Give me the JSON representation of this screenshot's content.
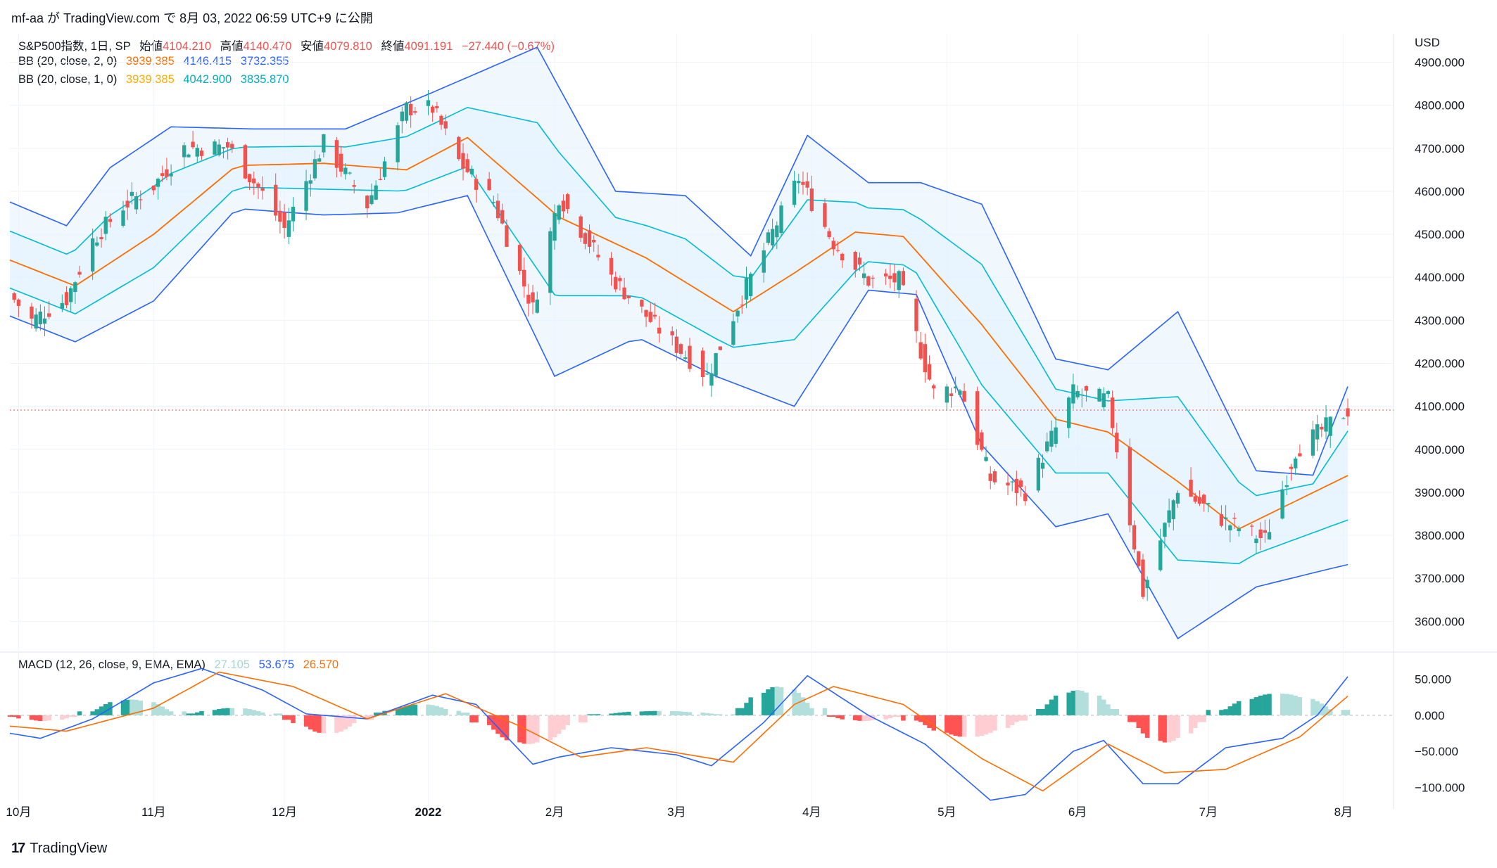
{
  "header": {
    "text": "mf-aa が TradingView.com で 8月 03, 2022 06:59 UTC+9 に公開"
  },
  "footer": {
    "logo_icon": "tradingview-logo-icon",
    "brand": "TradingView"
  },
  "colors": {
    "up": "#26a69a",
    "down": "#ef5350",
    "bb_outer": "#2962ff",
    "bb_inner": "#00bcd4",
    "basis": "#ff6d00",
    "macd_line": "#2962ff",
    "signal_line": "#ff6d00",
    "hist_up_strong": "#26a69a",
    "hist_up_weak": "#b2dfdb",
    "hist_down_strong": "#ff5252",
    "hist_down_weak": "#ffcdd2",
    "fill": "#e3f2fd",
    "text_dim": "#131722"
  },
  "legend": {
    "main": {
      "prefix": "S&P500指数, 1日, SP",
      "open_label": "始値",
      "open": "4104.210",
      "high_label": "高値",
      "high": "4140.470",
      "low_label": "安値",
      "low": "4079.810",
      "close_label": "終値",
      "close": "4091.191",
      "change": "−27.440 (−0.67%)"
    },
    "bb2": {
      "label": "BB (20, close, 2, 0)",
      "basis": "3939.385",
      "upper": "4146.415",
      "lower": "3732.355"
    },
    "bb1": {
      "label": "BB (20, close, 1, 0)",
      "basis": "3939.385",
      "upper": "4042.900",
      "lower": "3835.870"
    },
    "macd": {
      "label": "MACD (12, 26, close, 9, EMA, EMA)",
      "hist": "27.105",
      "macd": "53.675",
      "signal": "26.570"
    }
  },
  "chart_data": [
    {
      "type": "candlestick",
      "title": "S&P500指数, 1日, SP",
      "currency": "USD",
      "x_range": [
        "2021-09-29",
        "2022-08-02"
      ],
      "ylim": [
        3540,
        4950
      ],
      "yticks": [
        "4900.000",
        "4800.000",
        "4700.000",
        "4600.000",
        "4500.000",
        "4400.000",
        "4300.000",
        "4200.000",
        "4100.000",
        "4000.000",
        "3900.000",
        "3800.000",
        "3700.000",
        "3600.000"
      ],
      "xticks": [
        {
          "date": "2021-10-01",
          "label": "10月"
        },
        {
          "date": "2021-11-01",
          "label": "11月"
        },
        {
          "date": "2021-12-01",
          "label": "12月"
        },
        {
          "date": "2022-01-03",
          "label": "2022"
        },
        {
          "date": "2022-02-01",
          "label": "2月"
        },
        {
          "date": "2022-03-01",
          "label": "3月"
        },
        {
          "date": "2022-04-01",
          "label": "4月"
        },
        {
          "date": "2022-05-02",
          "label": "5月"
        },
        {
          "date": "2022-06-01",
          "label": "6月"
        },
        {
          "date": "2022-07-01",
          "label": "7月"
        },
        {
          "date": "2022-08-01",
          "label": "8月"
        }
      ],
      "last_close": 4091.191,
      "close_path": [
        [
          "2021-09-29",
          4360
        ],
        [
          "2021-10-04",
          4300
        ],
        [
          "2021-10-12",
          4350
        ],
        [
          "2021-10-18",
          4486
        ],
        [
          "2021-10-25",
          4566
        ],
        [
          "2021-11-01",
          4613
        ],
        [
          "2021-11-08",
          4700
        ],
        [
          "2021-11-18",
          4704
        ],
        [
          "2021-11-26",
          4594
        ],
        [
          "2021-12-01",
          4513
        ],
        [
          "2021-12-10",
          4712
        ],
        [
          "2021-12-20",
          4568
        ],
        [
          "2021-12-29",
          4793
        ],
        [
          "2022-01-04",
          4793
        ],
        [
          "2022-01-10",
          4670
        ],
        [
          "2022-01-18",
          4577
        ],
        [
          "2022-01-27",
          4326
        ],
        [
          "2022-02-02",
          4589
        ],
        [
          "2022-02-14",
          4401
        ],
        [
          "2022-02-24",
          4288
        ],
        [
          "2022-03-08",
          4170
        ],
        [
          "2022-03-16",
          4357
        ],
        [
          "2022-03-29",
          4631
        ],
        [
          "2022-04-06",
          4481
        ],
        [
          "2022-04-14",
          4392
        ],
        [
          "2022-04-21",
          4393
        ],
        [
          "2022-04-29",
          4131
        ],
        [
          "2022-05-05",
          4146
        ],
        [
          "2022-05-12",
          3930
        ],
        [
          "2022-05-20",
          3901
        ],
        [
          "2022-05-31",
          4132
        ],
        [
          "2022-06-08",
          4115
        ],
        [
          "2022-06-16",
          3667
        ],
        [
          "2022-06-24",
          3911
        ],
        [
          "2022-07-05",
          3831
        ],
        [
          "2022-07-14",
          3790
        ],
        [
          "2022-07-21",
          3998
        ],
        [
          "2022-08-02",
          4091
        ]
      ],
      "bb_basis_path": [
        [
          "2021-09-29",
          4440
        ],
        [
          "2021-10-14",
          4380
        ],
        [
          "2021-11-01",
          4500
        ],
        [
          "2021-11-20",
          4660
        ],
        [
          "2021-12-10",
          4665
        ],
        [
          "2021-12-29",
          4650
        ],
        [
          "2022-01-12",
          4725
        ],
        [
          "2022-02-02",
          4540
        ],
        [
          "2022-02-22",
          4445
        ],
        [
          "2022-03-14",
          4320
        ],
        [
          "2022-03-28",
          4410
        ],
        [
          "2022-04-11",
          4505
        ],
        [
          "2022-04-22",
          4495
        ],
        [
          "2022-05-10",
          4290
        ],
        [
          "2022-05-27",
          4070
        ],
        [
          "2022-06-08",
          4040
        ],
        [
          "2022-06-24",
          3925
        ],
        [
          "2022-07-08",
          3815
        ],
        [
          "2022-08-02",
          3939
        ]
      ],
      "bb_upper_path": [
        [
          "2021-09-29",
          4575
        ],
        [
          "2021-10-12",
          4520
        ],
        [
          "2021-10-22",
          4655
        ],
        [
          "2021-11-05",
          4750
        ],
        [
          "2021-11-24",
          4745
        ],
        [
          "2021-12-15",
          4745
        ],
        [
          "2022-01-04",
          4830
        ],
        [
          "2022-01-20",
          4900
        ],
        [
          "2022-01-28",
          4935
        ],
        [
          "2022-02-15",
          4600
        ],
        [
          "2022-03-03",
          4590
        ],
        [
          "2022-03-18",
          4450
        ],
        [
          "2022-03-31",
          4730
        ],
        [
          "2022-04-14",
          4620
        ],
        [
          "2022-04-26",
          4620
        ],
        [
          "2022-05-10",
          4570
        ],
        [
          "2022-05-27",
          4210
        ],
        [
          "2022-06-08",
          4185
        ],
        [
          "2022-06-24",
          4320
        ],
        [
          "2022-07-12",
          3950
        ],
        [
          "2022-07-25",
          3940
        ],
        [
          "2022-08-02",
          4146
        ]
      ],
      "bb_lower_path": [
        [
          "2021-09-29",
          4310
        ],
        [
          "2021-10-14",
          4250
        ],
        [
          "2021-11-01",
          4345
        ],
        [
          "2021-11-20",
          4560
        ],
        [
          "2021-12-10",
          4545
        ],
        [
          "2021-12-27",
          4550
        ],
        [
          "2022-01-12",
          4590
        ],
        [
          "2022-02-01",
          4170
        ],
        [
          "2022-02-20",
          4260
        ],
        [
          "2022-03-10",
          4170
        ],
        [
          "2022-03-28",
          4100
        ],
        [
          "2022-04-14",
          4370
        ],
        [
          "2022-04-25",
          4360
        ],
        [
          "2022-05-10",
          4010
        ],
        [
          "2022-05-27",
          3820
        ],
        [
          "2022-06-08",
          3850
        ],
        [
          "2022-06-24",
          3560
        ],
        [
          "2022-07-12",
          3680
        ],
        [
          "2022-07-28",
          3720
        ],
        [
          "2022-08-02",
          3732
        ]
      ]
    },
    {
      "type": "bar+line",
      "title": "MACD (12, 26, close, 9, EMA, EMA)",
      "ylim": [
        -130,
        80
      ],
      "yticks": [
        "50.000",
        "0.000",
        "−50.000",
        "−100.000"
      ],
      "macd_path": [
        [
          "2021-09-29",
          -25
        ],
        [
          "2021-10-06",
          -32
        ],
        [
          "2021-10-18",
          -5
        ],
        [
          "2021-11-01",
          45
        ],
        [
          "2021-11-12",
          65
        ],
        [
          "2021-11-26",
          35
        ],
        [
          "2021-12-06",
          2
        ],
        [
          "2021-12-20",
          -5
        ],
        [
          "2022-01-04",
          28
        ],
        [
          "2022-01-14",
          15
        ],
        [
          "2022-01-27",
          -68
        ],
        [
          "2022-02-02",
          -58
        ],
        [
          "2022-02-14",
          -45
        ],
        [
          "2022-03-01",
          -55
        ],
        [
          "2022-03-09",
          -70
        ],
        [
          "2022-03-21",
          -10
        ],
        [
          "2022-03-31",
          55
        ],
        [
          "2022-04-14",
          0
        ],
        [
          "2022-04-27",
          -40
        ],
        [
          "2022-05-12",
          -118
        ],
        [
          "2022-05-20",
          -110
        ],
        [
          "2022-05-31",
          -50
        ],
        [
          "2022-06-07",
          -35
        ],
        [
          "2022-06-16",
          -95
        ],
        [
          "2022-06-24",
          -95
        ],
        [
          "2022-07-05",
          -45
        ],
        [
          "2022-07-18",
          -32
        ],
        [
          "2022-07-26",
          0
        ],
        [
          "2022-08-02",
          53.675
        ]
      ],
      "signal_path": [
        [
          "2021-09-29",
          -15
        ],
        [
          "2021-10-12",
          -22
        ],
        [
          "2021-11-01",
          10
        ],
        [
          "2021-11-16",
          60
        ],
        [
          "2021-12-03",
          40
        ],
        [
          "2021-12-20",
          -5
        ],
        [
          "2022-01-07",
          30
        ],
        [
          "2022-01-24",
          -15
        ],
        [
          "2022-02-07",
          -58
        ],
        [
          "2022-02-22",
          -45
        ],
        [
          "2022-03-14",
          -65
        ],
        [
          "2022-03-28",
          15
        ],
        [
          "2022-04-06",
          40
        ],
        [
          "2022-04-22",
          15
        ],
        [
          "2022-05-10",
          -60
        ],
        [
          "2022-05-24",
          -105
        ],
        [
          "2022-06-08",
          -40
        ],
        [
          "2022-06-21",
          -80
        ],
        [
          "2022-07-05",
          -75
        ],
        [
          "2022-07-22",
          -30
        ],
        [
          "2022-08-02",
          26.57
        ]
      ],
      "histogram": [
        {
          "from": "2021-09-29",
          "to": "2021-10-14",
          "peak": -8
        },
        {
          "from": "2021-10-15",
          "to": "2021-11-08",
          "peak": 22
        },
        {
          "from": "2021-11-09",
          "to": "2021-11-30",
          "peak": 10
        },
        {
          "from": "2021-12-01",
          "to": "2021-12-21",
          "peak": -25
        },
        {
          "from": "2021-12-22",
          "to": "2022-01-12",
          "peak": 15
        },
        {
          "from": "2022-01-13",
          "to": "2022-02-08",
          "peak": -40
        },
        {
          "from": "2022-02-09",
          "to": "2022-03-14",
          "peak": 6
        },
        {
          "from": "2022-03-15",
          "to": "2022-04-04",
          "peak": 40
        },
        {
          "from": "2022-04-05",
          "to": "2022-04-21",
          "peak": -8
        },
        {
          "from": "2022-04-22",
          "to": "2022-05-20",
          "peak": -30
        },
        {
          "from": "2022-05-23",
          "to": "2022-06-10",
          "peak": 35
        },
        {
          "from": "2022-06-13",
          "to": "2022-06-30",
          "peak": -38
        },
        {
          "from": "2022-07-01",
          "to": "2022-08-02",
          "peak": 30
        }
      ]
    }
  ]
}
